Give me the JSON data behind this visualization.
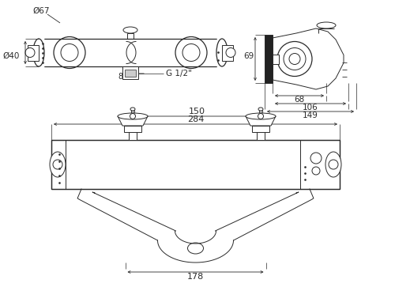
{
  "bg_color": "#ffffff",
  "line_color": "#2a2a2a",
  "dim_color": "#2a2a2a",
  "annotations": {
    "phi67": "Ø67",
    "phi40": "Ø40",
    "g_half": "G 1/2\"",
    "dim_8": "8",
    "dim_69": "69",
    "dim_68": "68",
    "dim_106": "106",
    "dim_149": "149",
    "dim_284": "284",
    "dim_150": "150",
    "dim_178": "178"
  }
}
